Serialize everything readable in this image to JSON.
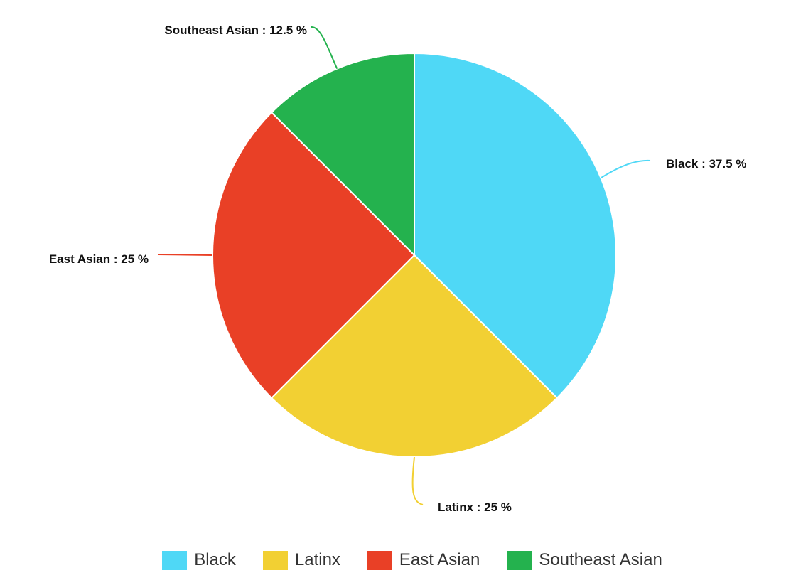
{
  "chart_data": {
    "type": "pie",
    "categories": [
      "Black",
      "Latinx",
      "East Asian",
      "Southeast Asian"
    ],
    "values": [
      37.5,
      25,
      25,
      12.5
    ],
    "colors": [
      "#4fd8f6",
      "#f2d033",
      "#e94026",
      "#24b24e"
    ],
    "data_labels": [
      "Black : 37.5 %",
      "Latinx : 25 %",
      "East Asian : 25 %",
      "Southeast Asian : 12.5 %"
    ],
    "legend_position": "bottom"
  },
  "legend": {
    "items": [
      {
        "label": "Black",
        "color": "#4fd8f6"
      },
      {
        "label": "Latinx",
        "color": "#f2d033"
      },
      {
        "label": "East Asian",
        "color": "#e94026"
      },
      {
        "label": "Southeast Asian",
        "color": "#24b24e"
      }
    ]
  }
}
